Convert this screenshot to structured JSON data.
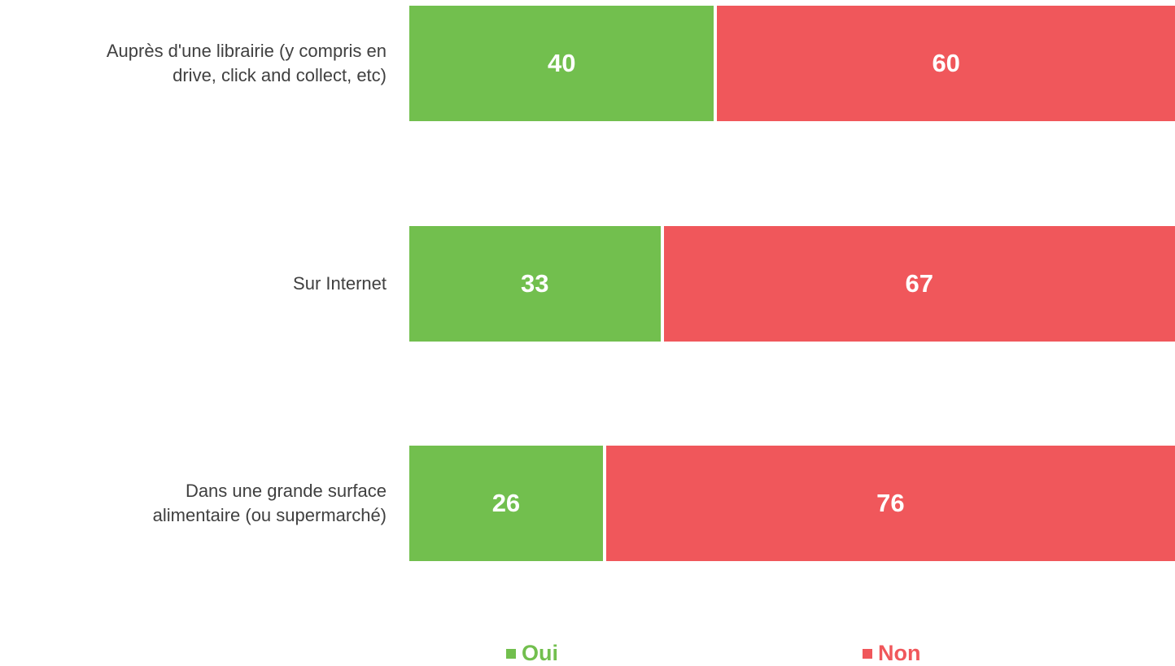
{
  "chart_data": {
    "type": "bar",
    "orientation": "horizontal",
    "stacked": true,
    "categories": [
      "Auprès d'une librairie (y compris en\ndrive, click and collect, etc)",
      "Sur Internet",
      "Dans une grande surface\nalimentaire (ou supermarché)"
    ],
    "series": [
      {
        "name": "Oui",
        "color": "#72bf4e",
        "values": [
          40,
          33,
          26
        ]
      },
      {
        "name": "Non",
        "color": "#f0575b",
        "values": [
          60,
          67,
          76
        ]
      }
    ],
    "legend": "bottom"
  }
}
